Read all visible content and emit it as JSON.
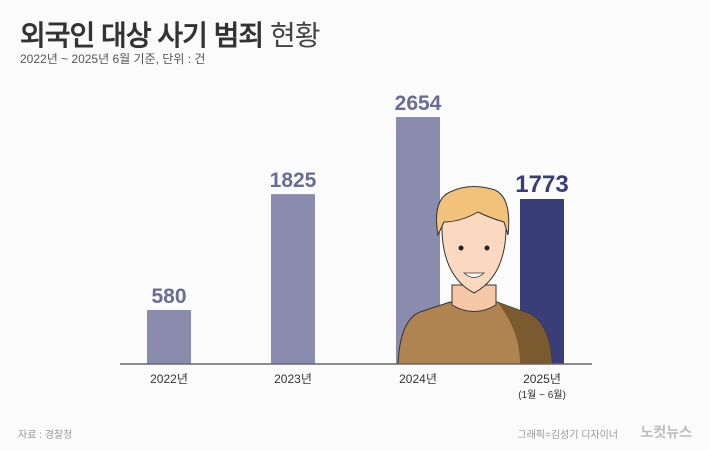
{
  "header": {
    "title_bold": "외국인 대상 사기 범죄",
    "title_light": "현황",
    "subtitle": "2022년 ~ 2025년 6월 기준, 단위 : 건"
  },
  "footer": {
    "source": "자료 : 경찰청",
    "credit": "그래픽=김성기 디자이너",
    "logo": "노컷뉴스"
  },
  "colors": {
    "bar": "#8a8cad",
    "highlight": "#3a3e78",
    "label_dark": "#3a3e78",
    "label": "#6a6c92"
  },
  "chart_data": {
    "type": "bar",
    "title": "외국인 대상 사기 범죄 현황",
    "categories": [
      "2022년",
      "2023년",
      "2024년",
      "2025년"
    ],
    "category_notes": [
      "",
      "",
      "",
      "(1월 ~ 6월)"
    ],
    "values": [
      580,
      1825,
      2654,
      1773
    ],
    "highlight_index": 3,
    "ylim": [
      0,
      2654
    ],
    "xlabel": "",
    "ylabel": "",
    "grid": false
  }
}
